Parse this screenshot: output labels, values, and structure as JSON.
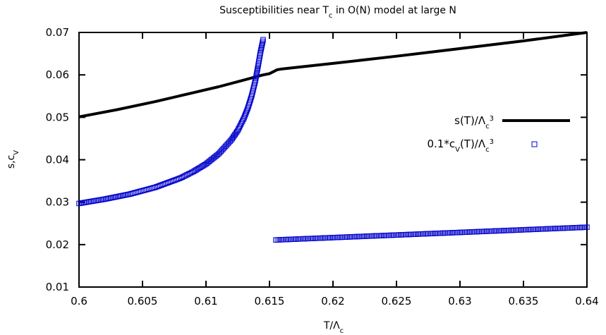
{
  "chart_data": {
    "type": "line",
    "title": {
      "pre": "Susceptibilities near T",
      "sub": "c",
      "post": " in O(N) model at large N"
    },
    "xlabel": {
      "pre": "T/Λ",
      "sub": "c"
    },
    "ylabel": {
      "pre": "s,c",
      "sub": "V"
    },
    "xlim": [
      0.6,
      0.64
    ],
    "ylim": [
      0.01,
      0.07
    ],
    "xticks": [
      0.6,
      0.605,
      0.61,
      0.615,
      0.62,
      0.625,
      0.63,
      0.635,
      0.64
    ],
    "yticks": [
      0.01,
      0.02,
      0.03,
      0.04,
      0.05,
      0.06,
      0.07
    ],
    "xtick_labels": [
      "0.6",
      "0.605",
      "0.61",
      "0.615",
      "0.62",
      "0.625",
      "0.63",
      "0.635",
      "0.64"
    ],
    "ytick_labels": [
      "0.01",
      "0.02",
      "0.03",
      "0.04",
      "0.05",
      "0.06",
      "0.07"
    ],
    "grid": false,
    "legend_position": "right",
    "series": [
      {
        "name": {
          "pre": "s(T)/Λ",
          "sub": "c",
          "sup": "3"
        },
        "style": "line",
        "color": "#000000",
        "x": [
          0.6,
          0.603,
          0.606,
          0.609,
          0.611,
          0.613,
          0.614,
          0.6145,
          0.615,
          0.6152,
          0.6154,
          0.6156,
          0.6158,
          0.616,
          0.62,
          0.625,
          0.63,
          0.635,
          0.64
        ],
        "y": [
          0.0501,
          0.0518,
          0.0537,
          0.0558,
          0.0572,
          0.0588,
          0.0596,
          0.06,
          0.0603,
          0.0606,
          0.0609,
          0.0612,
          0.0613,
          0.0614,
          0.0627,
          0.0644,
          0.0662,
          0.068,
          0.07
        ]
      },
      {
        "name": {
          "pre": "0.1*c",
          "sub": "V",
          "mid": "(T)/Λ",
          "sub2": "c",
          "sup": "3"
        },
        "style": "points",
        "color": "#0000cc",
        "segments": [
          {
            "x": [
              0.6,
              0.602,
              0.604,
              0.606,
              0.608,
              0.609,
              0.61,
              0.611,
              0.612,
              0.6125,
              0.613,
              0.6133,
              0.6136,
              0.6139,
              0.6141,
              0.6143,
              0.6145
            ],
            "y": [
              0.0297,
              0.0307,
              0.0319,
              0.0335,
              0.0357,
              0.0372,
              0.039,
              0.0414,
              0.0447,
              0.0469,
              0.0499,
              0.0522,
              0.0551,
              0.0588,
              0.0621,
              0.0655,
              0.0683
            ]
          },
          {
            "x": [
              0.6155,
              0.64
            ],
            "y": [
              0.0211,
              0.0241
            ]
          }
        ]
      }
    ]
  }
}
